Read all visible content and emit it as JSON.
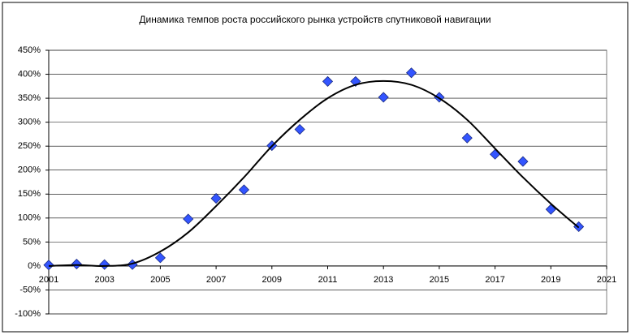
{
  "chart_data": {
    "type": "scatter",
    "title": "Динамика темпов роста российского рынка устройств спутниковой навигации",
    "xlim": [
      2001,
      2021
    ],
    "xticks": [
      2001,
      2003,
      2005,
      2007,
      2009,
      2011,
      2013,
      2015,
      2017,
      2019,
      2021
    ],
    "ylim": [
      -100,
      450
    ],
    "yticks": [
      {
        "value": -100,
        "label": "-100%"
      },
      {
        "value": -50,
        "label": "-50%"
      },
      {
        "value": 0,
        "label": "0%"
      },
      {
        "value": 50,
        "label": "50%"
      },
      {
        "value": 100,
        "label": "100%"
      },
      {
        "value": 150,
        "label": "150%"
      },
      {
        "value": 200,
        "label": "200%"
      },
      {
        "value": 250,
        "label": "250%"
      },
      {
        "value": 300,
        "label": "300%"
      },
      {
        "value": 350,
        "label": "350%"
      },
      {
        "value": 400,
        "label": "400%"
      },
      {
        "value": 450,
        "label": "450%"
      }
    ],
    "grid": true,
    "series": [
      {
        "color": "#3355ff",
        "marker": "diamond",
        "x": [
          2001,
          2002,
          2003,
          2004,
          2005,
          2006,
          2007,
          2008,
          2009,
          2010,
          2011,
          2012,
          2013,
          2014,
          2015,
          2016,
          2017,
          2018,
          2019,
          2020
        ],
        "values": [
          2,
          4,
          3,
          3,
          17,
          98,
          141,
          159,
          251,
          285,
          385,
          385,
          352,
          403,
          352,
          267,
          233,
          218,
          118,
          82
        ]
      },
      {
        "color": "#000000",
        "marker": "line",
        "x": [
          2001,
          2002,
          2003,
          2004,
          2005,
          2006,
          2007,
          2008,
          2009,
          2010,
          2011,
          2012,
          2013,
          2014,
          2015,
          2016,
          2017,
          2018,
          2019,
          2020
        ],
        "values": [
          0,
          2,
          0,
          5,
          30,
          70,
          125,
          185,
          250,
          305,
          350,
          378,
          386,
          378,
          350,
          305,
          245,
          185,
          130,
          80
        ]
      }
    ]
  }
}
